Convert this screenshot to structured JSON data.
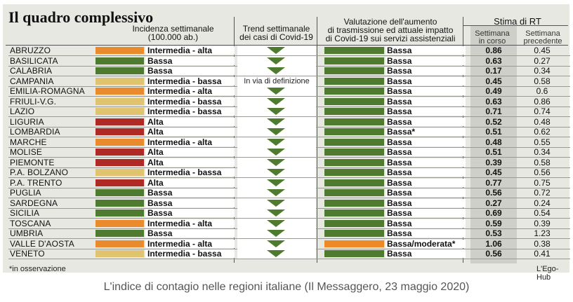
{
  "title": "Il quadro complessivo",
  "headers": {
    "incidenza": [
      "Incidenza settimanale",
      "(100.000 ab.)"
    ],
    "trend": [
      "Trend settimanale",
      "dei casi di Covid-19"
    ],
    "valutazione": [
      "Valutazione dell'aumento",
      "di trasmissione ed attuale impatto",
      "di Covid-19 sui servizi assistenziali"
    ],
    "rt_title": "Stima di RT",
    "rt_current": [
      "Settimana",
      "in corso"
    ],
    "rt_previous": [
      "Settimana",
      "precedente"
    ]
  },
  "colors": {
    "alta": "#b02a25",
    "intermedia_alta": "#e98a2c",
    "intermedia_bassa": "#dfc36f",
    "bassa": "#4e7b2f",
    "moderata": "#ee8a26",
    "trend_arrow": "#4e7b2f"
  },
  "rows": [
    {
      "region": "ABRUZZO",
      "incidence": "Intermedia - alta",
      "inc_level": "intermedia_alta",
      "trend": "down",
      "trend_text": "",
      "valutazione": "Bassa",
      "val_level": "bassa",
      "rt_current": "0.86",
      "rt_previous": "0.45"
    },
    {
      "region": "BASILICATA",
      "incidence": "Bassa",
      "inc_level": "bassa",
      "trend": "down",
      "trend_text": "",
      "valutazione": "Bassa",
      "val_level": "bassa",
      "rt_current": "0.63",
      "rt_previous": "0.27"
    },
    {
      "region": "CALABRIA",
      "incidence": "Bassa",
      "inc_level": "bassa",
      "trend": "down",
      "trend_text": "",
      "valutazione": "Bassa",
      "val_level": "bassa",
      "rt_current": "0.17",
      "rt_previous": "0.34"
    },
    {
      "region": "CAMPANIA",
      "incidence": "Intermedia - bassa",
      "inc_level": "intermedia_bassa",
      "trend": "text",
      "trend_text": "In via di definizione",
      "valutazione": "Bassa",
      "val_level": "bassa",
      "rt_current": "0.45",
      "rt_previous": "0.58"
    },
    {
      "region": "EMILIA-ROMAGNA",
      "incidence": "Intermedia - alta",
      "inc_level": "intermedia_alta",
      "trend": "down",
      "trend_text": "",
      "valutazione": "Bassa",
      "val_level": "bassa",
      "rt_current": "0.49",
      "rt_previous": "0.6"
    },
    {
      "region": "FRIULI-V.G.",
      "incidence": "Intermedia - bassa",
      "inc_level": "intermedia_bassa",
      "trend": "down",
      "trend_text": "",
      "valutazione": "Bassa",
      "val_level": "bassa",
      "rt_current": "0.63",
      "rt_previous": "0.86"
    },
    {
      "region": "LAZIO",
      "incidence": "Intermedia - bassa",
      "inc_level": "intermedia_bassa",
      "trend": "down",
      "trend_text": "",
      "valutazione": "Bassa",
      "val_level": "bassa",
      "rt_current": "0.71",
      "rt_previous": "0.74"
    },
    {
      "region": "LIGURIA",
      "incidence": "Alta",
      "inc_level": "alta",
      "trend": "down",
      "trend_text": "",
      "valutazione": "Bassa",
      "val_level": "bassa",
      "rt_current": "0.52",
      "rt_previous": "0.48"
    },
    {
      "region": "LOMBARDIA",
      "incidence": "Alta",
      "inc_level": "alta",
      "trend": "down",
      "trend_text": "",
      "valutazione": "Bassa*",
      "val_level": "bassa",
      "rt_current": "0.51",
      "rt_previous": "0.62"
    },
    {
      "region": "MARCHE",
      "incidence": "Intermedia - alta",
      "inc_level": "intermedia_alta",
      "trend": "down",
      "trend_text": "",
      "valutazione": "Bassa",
      "val_level": "bassa",
      "rt_current": "0.48",
      "rt_previous": "0.55"
    },
    {
      "region": "MOLISE",
      "incidence": "Alta",
      "inc_level": "alta",
      "trend": "down",
      "trend_text": "",
      "valutazione": "Bassa",
      "val_level": "bassa",
      "rt_current": "0.51",
      "rt_previous": "0.34"
    },
    {
      "region": "PIEMONTE",
      "incidence": "Alta",
      "inc_level": "alta",
      "trend": "down",
      "trend_text": "",
      "valutazione": "Bassa",
      "val_level": "bassa",
      "rt_current": "0.39",
      "rt_previous": "0.58"
    },
    {
      "region": "P.A. BOLZANO",
      "incidence": "Intermedia - bassa",
      "inc_level": "intermedia_bassa",
      "trend": "down",
      "trend_text": "",
      "valutazione": "Bassa",
      "val_level": "bassa",
      "rt_current": "0.45",
      "rt_previous": "0.56"
    },
    {
      "region": "P.A. TRENTO",
      "incidence": "Alta",
      "inc_level": "alta",
      "trend": "down",
      "trend_text": "",
      "valutazione": "Bassa",
      "val_level": "bassa",
      "rt_current": "0.77",
      "rt_previous": "0.75"
    },
    {
      "region": "PUGLIA",
      "incidence": "Bassa",
      "inc_level": "bassa",
      "trend": "down",
      "trend_text": "",
      "valutazione": "Bassa",
      "val_level": "bassa",
      "rt_current": "0.56",
      "rt_previous": "0.72"
    },
    {
      "region": "SARDEGNA",
      "incidence": "Bassa",
      "inc_level": "bassa",
      "trend": "down",
      "trend_text": "",
      "valutazione": "Bassa",
      "val_level": "bassa",
      "rt_current": "0.27",
      "rt_previous": "0.24"
    },
    {
      "region": "SICILIA",
      "incidence": "Bassa",
      "inc_level": "bassa",
      "trend": "down",
      "trend_text": "",
      "valutazione": "Bassa",
      "val_level": "bassa",
      "rt_current": "0.69",
      "rt_previous": "0.54"
    },
    {
      "region": "TOSCANA",
      "incidence": "Intermedia - alta",
      "inc_level": "intermedia_alta",
      "trend": "down",
      "trend_text": "",
      "valutazione": "Bassa",
      "val_level": "bassa",
      "rt_current": "0.59",
      "rt_previous": "0.39"
    },
    {
      "region": "UMBRIA",
      "incidence": "Bassa",
      "inc_level": "bassa",
      "trend": "down",
      "trend_text": "",
      "valutazione": "Bassa",
      "val_level": "bassa",
      "rt_current": "0.53",
      "rt_previous": "1.23"
    },
    {
      "region": "VALLE D'AOSTA",
      "incidence": "Intermedia - alta",
      "inc_level": "intermedia_alta",
      "trend": "down",
      "trend_text": "",
      "valutazione": "Bassa/moderata*",
      "val_level": "moderata",
      "rt_current": "1.06",
      "rt_previous": "0.38"
    },
    {
      "region": "VENETO",
      "incidence": "Intermedia - bassa",
      "inc_level": "intermedia_bassa",
      "trend": "down",
      "trend_text": "",
      "valutazione": "Bassa",
      "val_level": "bassa",
      "rt_current": "0.56",
      "rt_previous": "0.41"
    }
  ],
  "footnote": "*in osservazione",
  "credit": "L'Ego-Hub",
  "caption": "L'indice di contagio nelle regioni italiane (Il Messaggero, 23 maggio 2020)"
}
